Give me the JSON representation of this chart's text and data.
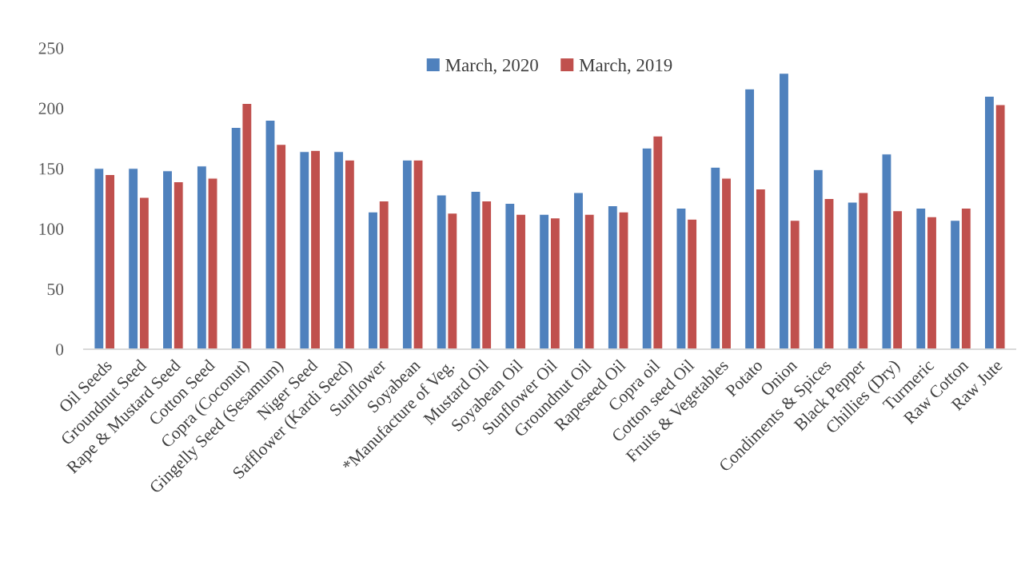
{
  "chart_data": {
    "type": "bar",
    "categories": [
      "Oil Seeds",
      "Groundnut Seed",
      "Rape & Mustard Seed",
      "Cotton Seed",
      "Copra (Coconut)",
      "Gingelly Seed (Sesamum)",
      "Niger Seed",
      "Safflower (Kardi Seed)",
      "Sunflower",
      "Soyabean",
      "*Manufacture of Veg.",
      "Mustard Oil",
      "Soyabean Oil",
      "Sunflower Oil",
      "Groundnut Oil",
      "Rapeseed Oil",
      "Copra oil",
      "Cotton seed Oil",
      "Fruits & Vegetables",
      "Potato",
      "Onion",
      "Condiments & Spices",
      "Black Pepper",
      "Chillies (Dry)",
      "Turmeric",
      "Raw Cotton",
      "Raw Jute"
    ],
    "series": [
      {
        "name": "March, 2020",
        "color": "#4f81bd",
        "values": [
          150,
          150,
          148,
          152,
          184,
          190,
          164,
          164,
          114,
          157,
          128,
          131,
          121,
          112,
          130,
          119,
          167,
          117,
          151,
          216,
          229,
          149,
          122,
          162,
          117,
          107,
          210
        ]
      },
      {
        "name": "March, 2019",
        "color": "#c0504d",
        "values": [
          145,
          126,
          139,
          142,
          204,
          170,
          165,
          157,
          123,
          157,
          113,
          123,
          112,
          109,
          112,
          114,
          177,
          108,
          142,
          133,
          107,
          125,
          130,
          115,
          110,
          117,
          203
        ]
      }
    ],
    "ylim": [
      0,
      250
    ],
    "yticks": [
      0,
      50,
      100,
      150,
      200,
      250
    ],
    "grid": false,
    "legend": "top"
  }
}
